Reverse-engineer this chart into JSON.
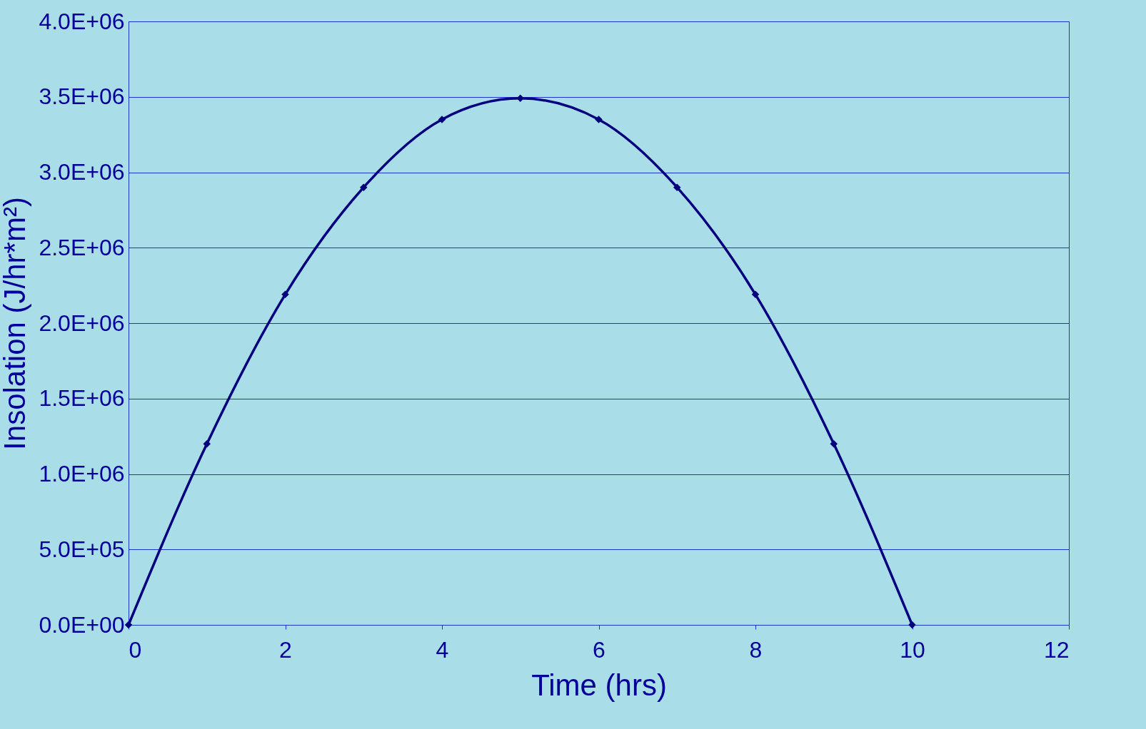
{
  "chart_data": {
    "type": "line",
    "xlabel": "Time (hrs)",
    "ylabel": "Insolation (J/hr*m²)",
    "x": [
      0,
      1,
      2,
      3,
      4,
      5,
      6,
      7,
      8,
      9,
      10
    ],
    "series": [
      {
        "color": "#00007f",
        "values": [
          0,
          1200000,
          2190000,
          2900000,
          3350000,
          3490000,
          3350000,
          2900000,
          2190000,
          1200000,
          0
        ]
      }
    ],
    "xlim": [
      0,
      12
    ],
    "xticks": [
      0,
      2,
      4,
      6,
      8,
      10,
      12
    ],
    "ylim": [
      0,
      4000000
    ],
    "yticks": [
      {
        "value": 0,
        "label": "0.0E+00"
      },
      {
        "value": 500000,
        "label": "5.0E+05"
      },
      {
        "value": 1000000,
        "label": "1.0E+06"
      },
      {
        "value": 1500000,
        "label": "1.5E+06"
      },
      {
        "value": 2000000,
        "label": "2.0E+06"
      },
      {
        "value": 2500000,
        "label": "2.5E+06"
      },
      {
        "value": 3000000,
        "label": "3.0E+06"
      },
      {
        "value": 3500000,
        "label": "3.5E+06"
      },
      {
        "value": 4000000,
        "label": "4.0E+06"
      }
    ],
    "grid": "y",
    "marker": "diamond",
    "line_style": "solid"
  }
}
